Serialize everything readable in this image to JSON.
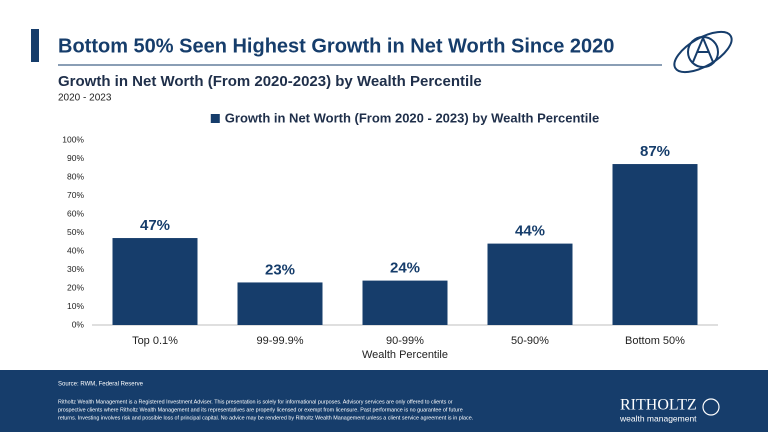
{
  "chart_data": {
    "type": "bar",
    "title": "Bottom 50% Seen Highest Growth in Net Worth Since 2020",
    "subtitle": "Growth in Net Worth (From 2020-2023) by Wealth Percentile",
    "date_range": "2020 - 2023",
    "x_label": "Wealth Percentile",
    "categories": [
      "Top 0.1%",
      "99-99.9%",
      "90-99%",
      "50-90%",
      "Bottom 50%"
    ],
    "series": [
      {
        "name": "Growth in Net Worth (From 2020 - 2023) by Wealth Percentile",
        "color": "#163d6b",
        "values": [
          47,
          23,
          24,
          44,
          87
        ],
        "value_labels": [
          "47%",
          "23%",
          "24%",
          "44%",
          "87%"
        ]
      }
    ],
    "ylim": [
      0,
      100
    ],
    "yticks": [
      {
        "value": 0,
        "label": "0%"
      },
      {
        "value": 10,
        "label": "10%"
      },
      {
        "value": 20,
        "label": "20%"
      },
      {
        "value": 30,
        "label": "30%"
      },
      {
        "value": 40,
        "label": "40%"
      },
      {
        "value": 50,
        "label": "50%"
      },
      {
        "value": 60,
        "label": "60%"
      },
      {
        "value": 70,
        "label": "70%"
      },
      {
        "value": 80,
        "label": "80%"
      },
      {
        "value": 90,
        "label": "90%"
      },
      {
        "value": 100,
        "label": "100%"
      }
    ],
    "grid": false,
    "legend": "top"
  },
  "footer": {
    "source": "Source: RWM, Federal Reserve",
    "disclaimer": [
      "Ritholtz Wealth Management is a Registered Investment Adviser. This presentation is solely for informational purposes. Advisory services are only offered to clients or",
      "prospective clients where Ritholtz Wealth Management and its representatives are properly licensed or exempt from licensure. Past performance is no guarantee of future",
      "returns. Investing involves risk and possible loss of principal capital. No advice may be rendered by Ritholtz Wealth Management unless a client service agreement is in place."
    ],
    "logo_name": "RITHOLTZ",
    "logo_tagline": "wealth management"
  }
}
